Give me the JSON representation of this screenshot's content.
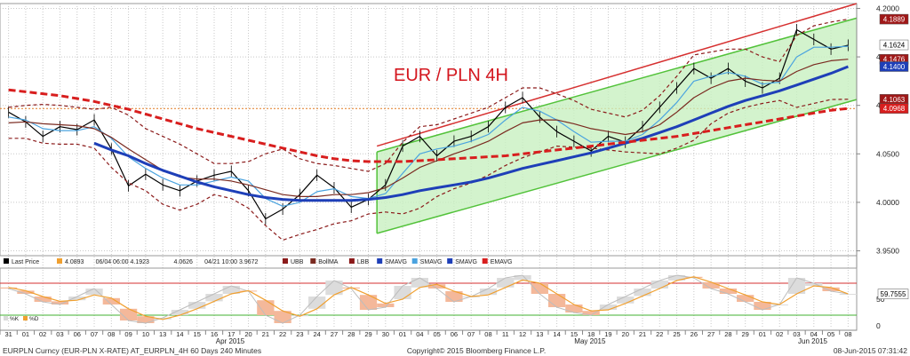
{
  "chart_data": {
    "type": "line",
    "title": "EUR / PLN 4H",
    "title_color": "#d4161e",
    "x_dates": [
      "31",
      "01",
      "02",
      "03",
      "06",
      "07",
      "08",
      "09",
      "10",
      "13",
      "14",
      "15",
      "16",
      "17",
      "20",
      "21",
      "22",
      "23",
      "24",
      "27",
      "28",
      "29",
      "30",
      "01",
      "04",
      "05",
      "06",
      "07",
      "08",
      "11",
      "12",
      "13",
      "14",
      "15",
      "18",
      "19",
      "20",
      "21",
      "22",
      "25",
      "26",
      "27",
      "28",
      "29",
      "01",
      "02",
      "03",
      "04",
      "05",
      "08"
    ],
    "x_month_labels": [
      {
        "label": "Apr 2015",
        "at_index": 12
      },
      {
        "label": "May 2015",
        "at_index": 33
      },
      {
        "label": "Jun 2015",
        "at_index": 46
      }
    ],
    "ylim": [
      3.945,
      4.205
    ],
    "y_ticks": [
      {
        "label": "4.2000",
        "value": 4.2
      },
      {
        "label": "4.1500",
        "value": 4.15
      },
      {
        "label": "4.1000",
        "value": 4.1
      },
      {
        "label": "4.0500",
        "value": 4.05
      },
      {
        "label": "4.0000",
        "value": 4.0
      },
      {
        "label": "3.9500",
        "value": 3.95
      }
    ],
    "price_tags": [
      {
        "label": "4.1889",
        "value": 4.1889,
        "bg": "#a01818",
        "fg": "#ffffff"
      },
      {
        "label": "4.1624",
        "value": 4.1624,
        "bg": "#ffffff",
        "fg": "#000000"
      },
      {
        "label": "4.1476",
        "value": 4.1476,
        "bg": "#a01818",
        "fg": "#ffffff"
      },
      {
        "label": "4.1400",
        "value": 4.14,
        "bg": "#1e3fb8",
        "fg": "#ffffff"
      },
      {
        "label": "4.1063",
        "value": 4.1063,
        "bg": "#a01818",
        "fg": "#ffffff"
      },
      {
        "label": "4.0968",
        "value": 4.0968,
        "bg": "#d81e1e",
        "fg": "#ffffff"
      }
    ],
    "hline_value": 4.0968,
    "series": [
      {
        "key": "price",
        "color": "#000000",
        "values": [
          4.093,
          4.083,
          4.068,
          4.078,
          4.075,
          4.085,
          4.055,
          4.017,
          4.029,
          4.018,
          4.012,
          4.022,
          4.028,
          4.032,
          4.012,
          3.983,
          3.993,
          4.008,
          4.028,
          4.015,
          3.995,
          4.003,
          4.018,
          4.058,
          4.068,
          4.048,
          4.063,
          4.068,
          4.078,
          4.098,
          4.108,
          4.088,
          4.073,
          4.063,
          4.053,
          4.068,
          4.062,
          4.078,
          4.098,
          4.118,
          4.138,
          4.128,
          4.138,
          4.125,
          4.118,
          4.128,
          4.178,
          4.168,
          4.158,
          4.162
        ]
      },
      {
        "key": "sma_fast",
        "color": "#4aa3df",
        "values": [
          4.088,
          4.085,
          4.076,
          4.074,
          4.074,
          4.078,
          4.066,
          4.047,
          4.035,
          4.025,
          4.018,
          4.018,
          4.022,
          4.026,
          4.022,
          4.004,
          3.996,
          4.0,
          4.011,
          4.014,
          4.006,
          4.004,
          4.009,
          4.03,
          4.05,
          4.055,
          4.058,
          4.063,
          4.07,
          4.085,
          4.098,
          4.094,
          4.085,
          4.073,
          4.062,
          4.063,
          4.063,
          4.07,
          4.085,
          4.103,
          4.125,
          4.13,
          4.134,
          4.13,
          4.122,
          4.124,
          4.15,
          4.16,
          4.16,
          4.161
        ]
      },
      {
        "key": "bollma",
        "color": "#7a2a20",
        "values": [
          4.082,
          4.083,
          4.081,
          4.08,
          4.079,
          4.076,
          4.067,
          4.055,
          4.044,
          4.033,
          4.026,
          4.024,
          4.024,
          4.022,
          4.018,
          4.013,
          4.008,
          4.006,
          4.006,
          4.008,
          4.008,
          4.01,
          4.015,
          4.025,
          4.036,
          4.043,
          4.05,
          4.056,
          4.063,
          4.073,
          4.082,
          4.085,
          4.085,
          4.081,
          4.076,
          4.073,
          4.07,
          4.073,
          4.08,
          4.093,
          4.108,
          4.118,
          4.125,
          4.128,
          4.126,
          4.125,
          4.135,
          4.142,
          4.146,
          4.1476
        ]
      },
      {
        "key": "ubb",
        "color": "#8b1a1a",
        "dashed": "4,3",
        "values": [
          4.098,
          4.1,
          4.101,
          4.1,
          4.098,
          4.096,
          4.098,
          4.09,
          4.076,
          4.068,
          4.06,
          4.05,
          4.04,
          4.04,
          4.042,
          4.05,
          4.055,
          4.045,
          4.04,
          4.038,
          4.035,
          4.032,
          4.04,
          4.062,
          4.078,
          4.08,
          4.086,
          4.092,
          4.098,
          4.108,
          4.118,
          4.118,
          4.112,
          4.105,
          4.096,
          4.092,
          4.088,
          4.095,
          4.11,
          4.13,
          4.152,
          4.155,
          4.158,
          4.158,
          4.15,
          4.145,
          4.172,
          4.182,
          4.186,
          4.1889
        ]
      },
      {
        "key": "lbb",
        "color": "#8b1a1a",
        "dashed": "4,3",
        "values": [
          4.066,
          4.066,
          4.061,
          4.06,
          4.06,
          4.056,
          4.036,
          4.02,
          4.012,
          3.998,
          3.992,
          3.998,
          4.008,
          4.004,
          3.994,
          3.976,
          3.961,
          3.967,
          3.972,
          3.978,
          3.981,
          3.988,
          3.99,
          3.988,
          3.994,
          4.006,
          4.014,
          4.02,
          4.028,
          4.038,
          4.046,
          4.052,
          4.058,
          4.057,
          4.056,
          4.054,
          4.052,
          4.051,
          4.05,
          4.056,
          4.064,
          4.081,
          4.092,
          4.098,
          4.102,
          4.105,
          4.098,
          4.102,
          4.106,
          4.1063
        ]
      },
      {
        "key": "sma_long",
        "color": "#1e3fb8",
        "width": 3,
        "start": 5,
        "values": [
          null,
          null,
          null,
          null,
          null,
          4.061,
          4.054,
          4.048,
          4.04,
          4.033,
          4.027,
          4.021,
          4.016,
          4.012,
          4.008,
          4.005,
          4.003,
          4.002,
          4.002,
          4.002,
          4.002,
          4.003,
          4.005,
          4.008,
          4.012,
          4.015,
          4.018,
          4.021,
          4.025,
          4.03,
          4.035,
          4.039,
          4.043,
          4.047,
          4.051,
          4.056,
          4.061,
          4.066,
          4.072,
          4.078,
          4.085,
          4.092,
          4.099,
          4.105,
          4.11,
          4.115,
          4.121,
          4.127,
          4.133,
          4.14
        ]
      },
      {
        "key": "ema_200",
        "color": "#d81e1e",
        "width": 3,
        "dashed": "8,4",
        "values": [
          4.116,
          4.114,
          4.112,
          4.11,
          4.107,
          4.104,
          4.1,
          4.096,
          4.091,
          4.086,
          4.081,
          4.076,
          4.072,
          4.068,
          4.064,
          4.06,
          4.056,
          4.052,
          4.048,
          4.045,
          4.043,
          4.042,
          4.042,
          4.042,
          4.043,
          4.044,
          4.045,
          4.046,
          4.047,
          4.048,
          4.05,
          4.052,
          4.054,
          4.056,
          4.058,
          4.06,
          4.062,
          4.064,
          4.066,
          4.068,
          4.071,
          4.074,
          4.077,
          4.08,
          4.083,
          4.086,
          4.089,
          4.092,
          4.095,
          4.0968
        ]
      }
    ],
    "channel": {
      "upper_from": {
        "x_index": 21.5,
        "value": 4.052
      },
      "upper_to": {
        "x_index": 49.5,
        "value": 4.19
      },
      "lower_from": {
        "x_index": 21.5,
        "value": 3.968
      },
      "lower_to": {
        "x_index": 49.5,
        "value": 4.106
      },
      "outer_from": {
        "x_index": 21.5,
        "value": 4.058
      },
      "outer_to": {
        "x_index": 49.5,
        "value": 4.205
      },
      "fill": "#c8f0c0",
      "line": "#52c23a",
      "outer_line": "#d63030"
    },
    "legend": [
      {
        "label": "Last Price",
        "color": "#000000"
      },
      {
        "label": "4.0893",
        "color": "#f0a030"
      },
      {
        "label": "06/04 06:00  4.1923",
        "color": null
      },
      {
        "label": "4.0626",
        "color": null
      },
      {
        "label": "04/21 10:00  3.9672",
        "color": null
      },
      {
        "label": "UBB",
        "color": "#8b1a1a"
      },
      {
        "label": "BollMA",
        "color": "#7a2a20"
      },
      {
        "label": "LBB",
        "color": "#8b1a1a"
      },
      {
        "label": "SMAVG",
        "color": "#1e3fb8"
      },
      {
        "label": "SMAVG",
        "color": "#4aa3df"
      },
      {
        "label": "SMAVG",
        "color": "#1e3fb8"
      },
      {
        "label": "EMAVG",
        "color": "#d81e1e"
      }
    ],
    "oscillator": {
      "ylim": [
        -5,
        105
      ],
      "y_ticks": [
        {
          "label": "50",
          "value": 50
        },
        {
          "label": "0",
          "value": 0
        }
      ],
      "upper_line": 80,
      "lower_line": 20,
      "value_tag": "59.7555",
      "value": 59.7555,
      "legend": [
        {
          "label": "%K",
          "color": "#d9d9d9"
        },
        {
          "label": "%D",
          "color": "#f0a030"
        }
      ],
      "values_k": [
        70,
        60,
        45,
        40,
        55,
        70,
        40,
        10,
        5,
        15,
        30,
        45,
        60,
        75,
        65,
        20,
        5,
        20,
        55,
        85,
        70,
        30,
        35,
        75,
        90,
        70,
        45,
        55,
        70,
        90,
        95,
        60,
        35,
        25,
        20,
        40,
        55,
        70,
        85,
        95,
        90,
        70,
        60,
        45,
        30,
        40,
        90,
        80,
        65,
        60
      ],
      "values_d": [
        72,
        66,
        55,
        46,
        48,
        58,
        52,
        32,
        18,
        12,
        20,
        32,
        46,
        60,
        66,
        48,
        28,
        18,
        32,
        58,
        72,
        58,
        42,
        50,
        72,
        78,
        65,
        55,
        58,
        72,
        86,
        80,
        60,
        40,
        28,
        30,
        42,
        56,
        70,
        85,
        92,
        82,
        70,
        58,
        45,
        40,
        60,
        75,
        72,
        59.76
      ]
    }
  },
  "footer": {
    "left": "EURPLN Curncy (EUR-PLN X-RATE) AT_EURPLN_4H 60 Days 240 Minutes",
    "center": "Copyright© 2015 Bloomberg Finance L.P.",
    "right": "08-Jun-2015 07:31:42"
  }
}
